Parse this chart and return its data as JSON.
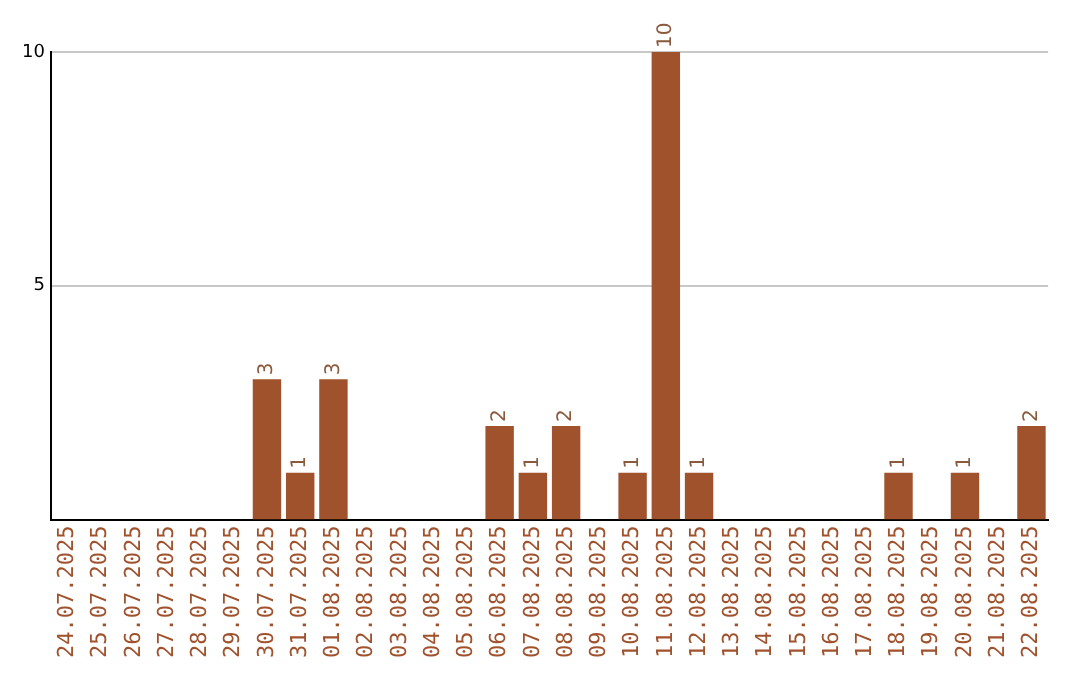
{
  "chart_data": {
    "type": "bar",
    "categories": [
      "24.07.2025",
      "25.07.2025",
      "26.07.2025",
      "27.07.2025",
      "28.07.2025",
      "29.07.2025",
      "30.07.2025",
      "31.07.2025",
      "01.08.2025",
      "02.08.2025",
      "03.08.2025",
      "04.08.2025",
      "05.08.2025",
      "06.08.2025",
      "07.08.2025",
      "08.08.2025",
      "09.08.2025",
      "10.08.2025",
      "11.08.2025",
      "12.08.2025",
      "13.08.2025",
      "14.08.2025",
      "15.08.2025",
      "16.08.2025",
      "17.08.2025",
      "18.08.2025",
      "19.08.2025",
      "20.08.2025",
      "21.08.2025",
      "22.08.2025"
    ],
    "values": [
      0,
      0,
      0,
      0,
      0,
      0,
      3,
      1,
      3,
      0,
      0,
      0,
      0,
      2,
      1,
      2,
      0,
      1,
      10,
      1,
      0,
      0,
      0,
      0,
      0,
      1,
      0,
      1,
      0,
      2
    ],
    "value_labels": [
      null,
      null,
      null,
      null,
      null,
      null,
      "3",
      "1",
      "3",
      null,
      null,
      null,
      null,
      "2",
      "1",
      "2",
      null,
      "1",
      "10",
      "1",
      null,
      null,
      null,
      null,
      null,
      "1",
      null,
      "1",
      null,
      "2"
    ],
    "color": "#a0522d",
    "ylim": [
      0,
      10
    ],
    "yticks": [
      5,
      10
    ],
    "grid": "y"
  }
}
